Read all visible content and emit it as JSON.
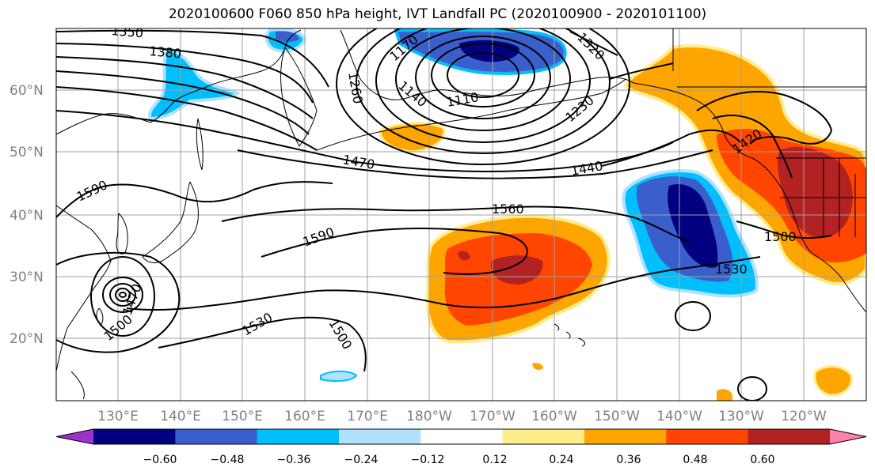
{
  "title": "2020100600 F060 850 hPa height, IVT Landfall PC (2020100900 - 2020101100)",
  "lat_labels": [
    "60°N",
    "50°N",
    "40°N",
    "30°N",
    "20°N"
  ],
  "lon_labels": [
    "130°E",
    "140°E",
    "150°E",
    "160°E",
    "170°E",
    "180°W",
    "170°W",
    "160°W",
    "150°W",
    "140°W",
    "130°W",
    "120°W"
  ],
  "contour_labels": [
    "1350",
    "1380",
    "1260",
    "1170",
    "1140",
    "1110",
    "1320",
    "1230",
    "1470",
    "1440",
    "1420",
    "1590",
    "1560",
    "1590",
    "1500",
    "1530",
    "1500",
    "1530",
    "1500",
    "1470",
    "1500",
    "1170",
    "1260"
  ],
  "colorbar": {
    "colors": [
      "#9933cc",
      "#000080",
      "#3a5fcd",
      "#00bfff",
      "#b0e2ff",
      "#ffffff",
      "#ffec8b",
      "#ffa500",
      "#ff4500",
      "#b22222",
      "#ff82ab"
    ],
    "tick_labels": [
      "−0.60",
      "−0.48",
      "−0.36",
      "−0.24",
      "−0.12",
      "0.12",
      "0.24",
      "0.36",
      "0.48",
      "0.60"
    ]
  },
  "colors": {
    "contour": "#000000",
    "coast": "#000000",
    "grid": "#a0a0a0",
    "axis_label": "#808080"
  }
}
